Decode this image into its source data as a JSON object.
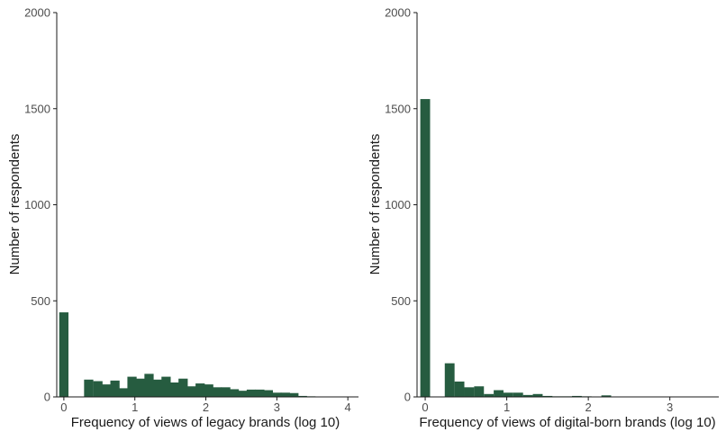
{
  "chart_data": [
    {
      "type": "bar",
      "subtype": "histogram",
      "xlabel": "Frequency of views of legacy brands (log 10)",
      "ylabel": "Number of respondents",
      "xlim": [
        -0.1,
        4.15
      ],
      "ylim": [
        0,
        2000
      ],
      "xticks": [
        "0",
        "1",
        "2",
        "3",
        "4"
      ],
      "yticks": [
        "0",
        "500",
        "1000",
        "1500",
        "2000"
      ],
      "grid": false,
      "bin_width": 0.13,
      "bins": [
        {
          "x": 0.0,
          "y": 440
        },
        {
          "x": 0.35,
          "y": 90
        },
        {
          "x": 0.48,
          "y": 82
        },
        {
          "x": 0.6,
          "y": 65
        },
        {
          "x": 0.72,
          "y": 85
        },
        {
          "x": 0.84,
          "y": 45
        },
        {
          "x": 0.96,
          "y": 105
        },
        {
          "x": 1.08,
          "y": 95
        },
        {
          "x": 1.2,
          "y": 120
        },
        {
          "x": 1.32,
          "y": 90
        },
        {
          "x": 1.44,
          "y": 105
        },
        {
          "x": 1.56,
          "y": 75
        },
        {
          "x": 1.68,
          "y": 95
        },
        {
          "x": 1.8,
          "y": 55
        },
        {
          "x": 1.92,
          "y": 70
        },
        {
          "x": 2.04,
          "y": 65
        },
        {
          "x": 2.16,
          "y": 50
        },
        {
          "x": 2.28,
          "y": 50
        },
        {
          "x": 2.4,
          "y": 40
        },
        {
          "x": 2.52,
          "y": 32
        },
        {
          "x": 2.64,
          "y": 38
        },
        {
          "x": 2.76,
          "y": 38
        },
        {
          "x": 2.88,
          "y": 35
        },
        {
          "x": 3.0,
          "y": 22
        },
        {
          "x": 3.12,
          "y": 22
        },
        {
          "x": 3.24,
          "y": 20
        },
        {
          "x": 3.36,
          "y": 5
        },
        {
          "x": 3.48,
          "y": 3
        }
      ],
      "color": "#265c40"
    },
    {
      "type": "bar",
      "subtype": "histogram",
      "xlabel": "Frequency of views of digital-born brands (log 10)",
      "ylabel": "Number of respondents",
      "xlim": [
        -0.1,
        3.6
      ],
      "ylim": [
        0,
        2000
      ],
      "xticks": [
        "0",
        "1",
        "2",
        "3"
      ],
      "yticks": [
        "0",
        "500",
        "1000",
        "1500",
        "2000"
      ],
      "grid": false,
      "bin_width": 0.12,
      "bins": [
        {
          "x": 0.0,
          "y": 1550
        },
        {
          "x": 0.3,
          "y": 175
        },
        {
          "x": 0.42,
          "y": 80
        },
        {
          "x": 0.54,
          "y": 50
        },
        {
          "x": 0.66,
          "y": 55
        },
        {
          "x": 0.78,
          "y": 15
        },
        {
          "x": 0.9,
          "y": 35
        },
        {
          "x": 1.02,
          "y": 22
        },
        {
          "x": 1.14,
          "y": 22
        },
        {
          "x": 1.26,
          "y": 10
        },
        {
          "x": 1.38,
          "y": 15
        },
        {
          "x": 1.5,
          "y": 5
        },
        {
          "x": 1.62,
          "y": 3
        },
        {
          "x": 1.74,
          "y": 3
        },
        {
          "x": 1.86,
          "y": 5
        },
        {
          "x": 1.98,
          "y": 3
        },
        {
          "x": 2.1,
          "y": 2
        },
        {
          "x": 2.22,
          "y": 8
        },
        {
          "x": 2.34,
          "y": 2
        }
      ],
      "color": "#265c40"
    }
  ]
}
